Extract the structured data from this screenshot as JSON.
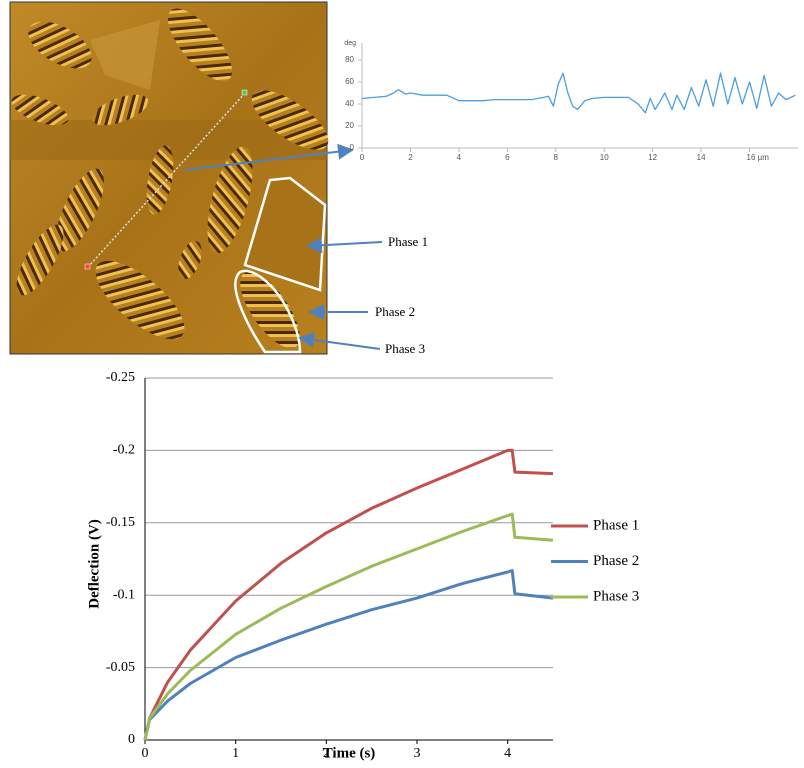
{
  "image_annotations": [
    "Phase 1",
    "Phase 2",
    "Phase 3"
  ],
  "chart_data": [
    {
      "type": "line",
      "ylabel": "deg",
      "x": [
        0,
        0.5,
        1,
        1.3,
        1.5,
        1.8,
        2,
        2.5,
        3,
        3.5,
        4,
        4.5,
        5,
        5.5,
        6,
        6.5,
        7,
        7.5,
        7.7,
        7.9,
        8.1,
        8.3,
        8.5,
        8.7,
        8.9,
        9.2,
        9.5,
        10,
        10.5,
        11,
        11.4,
        11.7,
        11.9,
        12.1,
        12.3,
        12.5,
        12.8,
        13,
        13.3,
        13.6,
        13.9,
        14.2,
        14.5,
        14.8,
        15.1,
        15.4,
        15.7,
        16,
        16.3,
        16.6,
        16.9,
        17.2,
        17.5,
        17.9
      ],
      "values": [
        45,
        46,
        47,
        50,
        53,
        49,
        50,
        48,
        48,
        48,
        43,
        43,
        43,
        44,
        44,
        44,
        44,
        46,
        47,
        38,
        58,
        68,
        50,
        38,
        35,
        43,
        45,
        46,
        46,
        46,
        40,
        32,
        45,
        35,
        42,
        50,
        35,
        48,
        35,
        55,
        38,
        62,
        38,
        68,
        40,
        64,
        40,
        60,
        36,
        66,
        38,
        50,
        44,
        48
      ],
      "color": "#4a9fe0",
      "xlim": [
        0,
        18
      ],
      "ylim": [
        0,
        90
      ],
      "xticks": [
        0,
        2,
        4,
        6,
        8,
        10,
        12,
        14,
        {
          "value": 16,
          "label": "16 µm"
        }
      ],
      "yticks": [
        0,
        20,
        40,
        60,
        80
      ]
    },
    {
      "type": "line",
      "xlabel": "Time (s)",
      "ylabel": "Deflection (V)",
      "x": [
        0,
        0.05,
        0.25,
        0.5,
        1,
        1.5,
        2,
        2.5,
        3,
        3.5,
        4,
        4.05,
        4.08,
        4.5
      ],
      "series": [
        {
          "name": "Phase 1",
          "color": "#c0504d",
          "values": [
            0,
            -0.015,
            -0.04,
            -0.062,
            -0.096,
            -0.122,
            -0.143,
            -0.16,
            -0.174,
            -0.187,
            -0.2,
            -0.2,
            -0.185,
            -0.184
          ]
        },
        {
          "name": "Phase 2",
          "color": "#4f81bd",
          "values": [
            0,
            -0.014,
            -0.027,
            -0.039,
            -0.057,
            -0.069,
            -0.08,
            -0.09,
            -0.098,
            -0.108,
            -0.116,
            -0.117,
            -0.101,
            -0.098
          ]
        },
        {
          "name": "Phase 3",
          "color": "#9bbb59",
          "values": [
            0,
            -0.015,
            -0.032,
            -0.048,
            -0.073,
            -0.091,
            -0.106,
            -0.12,
            -0.132,
            -0.144,
            -0.155,
            -0.156,
            -0.14,
            -0.138
          ]
        }
      ],
      "xlim": [
        0,
        4.5
      ],
      "ylim": [
        0,
        -0.25
      ],
      "xticks": [
        0,
        1,
        2,
        3,
        4
      ],
      "yticks": [
        0,
        -0.05,
        -0.1,
        -0.15,
        -0.2,
        -0.25
      ],
      "grid": true,
      "legend": "right"
    }
  ]
}
